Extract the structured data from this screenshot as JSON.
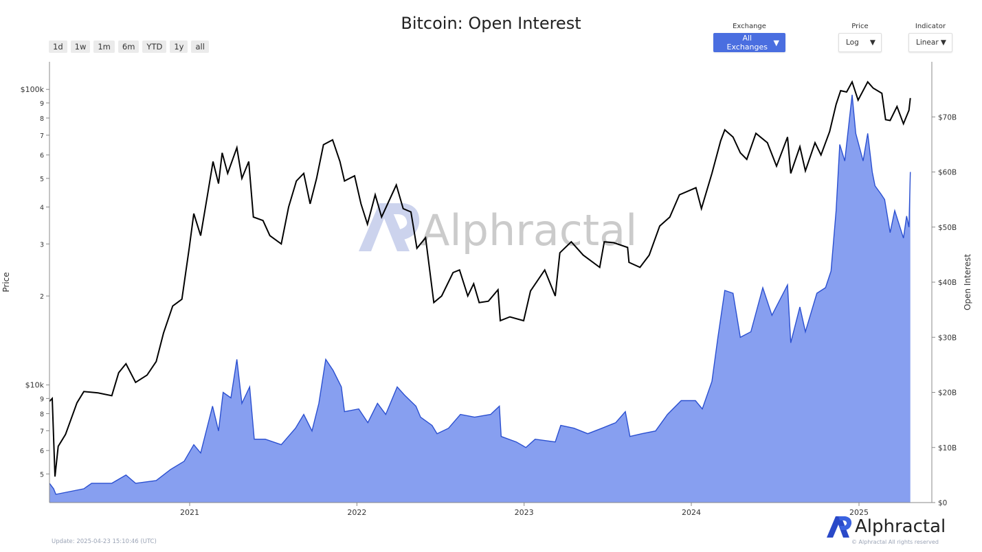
{
  "title": "Bitcoin: Open Interest",
  "range_buttons": [
    "1d",
    "1w",
    "1m",
    "6m",
    "YTD",
    "1y",
    "all"
  ],
  "controls": {
    "exchange": {
      "label": "Exchange",
      "value": "All Exchanges"
    },
    "price": {
      "label": "Price",
      "value": "Log"
    },
    "indicator": {
      "label": "Indicator",
      "value": "Linear"
    }
  },
  "footer": {
    "update": "Update: 2025-04-23 15:10:46 (UTC)",
    "copyright": "© Alphractal All rights reserved",
    "logo_text": "Alphractal",
    "watermark": "Alphractal"
  },
  "colors": {
    "price_line": "#000000",
    "oi_line": "#2a4fd0",
    "oi_fill": "#879ff0",
    "exchange_button": "#4a6ee0"
  },
  "chart_data": {
    "type": "line+area",
    "title": "Bitcoin: Open Interest",
    "xlabel": "",
    "x_ticks": [
      "2021",
      "2022",
      "2023",
      "2024",
      "2025"
    ],
    "x_range": [
      "2020-03-01",
      "2025-06-09"
    ],
    "y_left": {
      "label": "Price",
      "scale": "log",
      "range": [
        4000,
        124000
      ],
      "ticks": [
        {
          "v": 5000,
          "t": "5"
        },
        {
          "v": 6000,
          "t": "6"
        },
        {
          "v": 7000,
          "t": "7"
        },
        {
          "v": 8000,
          "t": "8"
        },
        {
          "v": 9000,
          "t": "9"
        },
        {
          "v": 10000,
          "t": "$10k"
        },
        {
          "v": 20000,
          "t": "2"
        },
        {
          "v": 30000,
          "t": "3"
        },
        {
          "v": 40000,
          "t": "4"
        },
        {
          "v": 50000,
          "t": "5"
        },
        {
          "v": 60000,
          "t": "6"
        },
        {
          "v": 70000,
          "t": "7"
        },
        {
          "v": 80000,
          "t": "8"
        },
        {
          "v": 90000,
          "t": "9"
        },
        {
          "v": 100000,
          "t": "$100k"
        }
      ]
    },
    "y_right": {
      "label": "Open Interest",
      "scale": "linear",
      "range": [
        0,
        80
      ],
      "ticks": [
        {
          "v": 0,
          "t": "$0"
        },
        {
          "v": 10,
          "t": "$10B"
        },
        {
          "v": 20,
          "t": "$20B"
        },
        {
          "v": 30,
          "t": "$30B"
        },
        {
          "v": 40,
          "t": "$40B"
        },
        {
          "v": 50,
          "t": "$50B"
        },
        {
          "v": 60,
          "t": "$60B"
        },
        {
          "v": 70,
          "t": "$70B"
        }
      ]
    },
    "series": [
      {
        "type": "line",
        "axis": "left",
        "unit": "USD",
        "points": [
          [
            "2020-03-01",
            8800
          ],
          [
            "2020-03-07",
            9000
          ],
          [
            "2020-03-13",
            4900
          ],
          [
            "2020-03-20",
            6200
          ],
          [
            "2020-04-05",
            6800
          ],
          [
            "2020-04-30",
            8700
          ],
          [
            "2020-05-15",
            9500
          ],
          [
            "2020-06-15",
            9400
          ],
          [
            "2020-07-15",
            9200
          ],
          [
            "2020-07-30",
            11000
          ],
          [
            "2020-08-15",
            11800
          ],
          [
            "2020-09-05",
            10200
          ],
          [
            "2020-09-30",
            10800
          ],
          [
            "2020-10-20",
            12000
          ],
          [
            "2020-11-05",
            15000
          ],
          [
            "2020-11-25",
            18500
          ],
          [
            "2020-12-15",
            19500
          ],
          [
            "2020-12-31",
            29000
          ],
          [
            "2021-01-10",
            38000
          ],
          [
            "2021-01-25",
            32000
          ],
          [
            "2021-02-10",
            45000
          ],
          [
            "2021-02-21",
            57000
          ],
          [
            "2021-03-05",
            48000
          ],
          [
            "2021-03-13",
            61000
          ],
          [
            "2021-03-25",
            52000
          ],
          [
            "2021-04-14",
            63500
          ],
          [
            "2021-04-25",
            50000
          ],
          [
            "2021-05-10",
            57000
          ],
          [
            "2021-05-20",
            37000
          ],
          [
            "2021-06-10",
            36000
          ],
          [
            "2021-06-25",
            32000
          ],
          [
            "2021-07-20",
            30000
          ],
          [
            "2021-08-05",
            40000
          ],
          [
            "2021-08-22",
            49000
          ],
          [
            "2021-09-07",
            52000
          ],
          [
            "2021-09-21",
            41000
          ],
          [
            "2021-10-05",
            50000
          ],
          [
            "2021-10-20",
            65000
          ],
          [
            "2021-11-09",
            67500
          ],
          [
            "2021-11-25",
            57000
          ],
          [
            "2021-12-05",
            49000
          ],
          [
            "2021-12-27",
            51000
          ],
          [
            "2022-01-10",
            41000
          ],
          [
            "2022-01-24",
            35000
          ],
          [
            "2022-02-10",
            44000
          ],
          [
            "2022-02-24",
            37000
          ],
          [
            "2022-03-28",
            47500
          ],
          [
            "2022-04-12",
            39500
          ],
          [
            "2022-04-29",
            38500
          ],
          [
            "2022-05-12",
            29000
          ],
          [
            "2022-05-31",
            31500
          ],
          [
            "2022-06-18",
            19000
          ],
          [
            "2022-07-05",
            20000
          ],
          [
            "2022-07-30",
            24000
          ],
          [
            "2022-08-13",
            24500
          ],
          [
            "2022-08-31",
            20000
          ],
          [
            "2022-09-13",
            22000
          ],
          [
            "2022-09-25",
            19000
          ],
          [
            "2022-10-15",
            19200
          ],
          [
            "2022-11-05",
            21000
          ],
          [
            "2022-11-10",
            16500
          ],
          [
            "2022-12-01",
            17000
          ],
          [
            "2022-12-31",
            16500
          ],
          [
            "2023-01-15",
            20800
          ],
          [
            "2023-02-15",
            24500
          ],
          [
            "2023-03-10",
            20000
          ],
          [
            "2023-03-20",
            28000
          ],
          [
            "2023-04-14",
            30500
          ],
          [
            "2023-05-10",
            27500
          ],
          [
            "2023-06-15",
            25000
          ],
          [
            "2023-06-25",
            30500
          ],
          [
            "2023-07-15",
            30300
          ],
          [
            "2023-08-15",
            29200
          ],
          [
            "2023-08-18",
            26000
          ],
          [
            "2023-09-11",
            25000
          ],
          [
            "2023-10-01",
            27500
          ],
          [
            "2023-10-24",
            34500
          ],
          [
            "2023-11-15",
            37000
          ],
          [
            "2023-12-06",
            44000
          ],
          [
            "2024-01-11",
            46500
          ],
          [
            "2024-01-23",
            39500
          ],
          [
            "2024-02-15",
            52000
          ],
          [
            "2024-03-05",
            67000
          ],
          [
            "2024-03-14",
            73000
          ],
          [
            "2024-04-01",
            69000
          ],
          [
            "2024-04-17",
            61000
          ],
          [
            "2024-05-01",
            58000
          ],
          [
            "2024-05-21",
            71000
          ],
          [
            "2024-06-15",
            66000
          ],
          [
            "2024-07-05",
            55000
          ],
          [
            "2024-07-29",
            69000
          ],
          [
            "2024-08-05",
            52000
          ],
          [
            "2024-08-25",
            64000
          ],
          [
            "2024-09-06",
            53000
          ],
          [
            "2024-09-27",
            66000
          ],
          [
            "2024-10-10",
            60000
          ],
          [
            "2024-10-29",
            72000
          ],
          [
            "2024-11-12",
            89000
          ],
          [
            "2024-11-22",
            99000
          ],
          [
            "2024-12-05",
            98000
          ],
          [
            "2024-12-17",
            106000
          ],
          [
            "2024-12-30",
            92000
          ],
          [
            "2025-01-20",
            106000
          ],
          [
            "2025-02-01",
            101000
          ],
          [
            "2025-02-20",
            97000
          ],
          [
            "2025-02-28",
            79000
          ],
          [
            "2025-03-10",
            78500
          ],
          [
            "2025-03-25",
            87500
          ],
          [
            "2025-04-08",
            76500
          ],
          [
            "2025-04-20",
            85000
          ],
          [
            "2025-04-23",
            93500
          ]
        ]
      },
      {
        "type": "area",
        "axis": "right",
        "unit": "USD billions",
        "points": [
          [
            "2020-03-01",
            3.5
          ],
          [
            "2020-03-10",
            2.5
          ],
          [
            "2020-03-15",
            1.5
          ],
          [
            "2020-05-15",
            2.5
          ],
          [
            "2020-06-01",
            3.5
          ],
          [
            "2020-07-15",
            3.5
          ],
          [
            "2020-08-15",
            5.0
          ],
          [
            "2020-09-05",
            3.5
          ],
          [
            "2020-10-20",
            4.0
          ],
          [
            "2020-11-20",
            6.0
          ],
          [
            "2020-12-20",
            7.5
          ],
          [
            "2021-01-10",
            10.5
          ],
          [
            "2021-01-25",
            9.0
          ],
          [
            "2021-02-20",
            17.5
          ],
          [
            "2021-03-05",
            13.0
          ],
          [
            "2021-03-15",
            20.0
          ],
          [
            "2021-04-01",
            19.0
          ],
          [
            "2021-04-14",
            26.0
          ],
          [
            "2021-04-25",
            18.0
          ],
          [
            "2021-05-12",
            21.0
          ],
          [
            "2021-05-22",
            11.5
          ],
          [
            "2021-06-15",
            11.5
          ],
          [
            "2021-07-20",
            10.5
          ],
          [
            "2021-08-20",
            13.5
          ],
          [
            "2021-09-07",
            16.0
          ],
          [
            "2021-09-25",
            13.0
          ],
          [
            "2021-10-10",
            18.0
          ],
          [
            "2021-10-25",
            26.0
          ],
          [
            "2021-11-10",
            24.0
          ],
          [
            "2021-11-28",
            21.0
          ],
          [
            "2021-12-05",
            16.5
          ],
          [
            "2022-01-05",
            17.0
          ],
          [
            "2022-01-25",
            14.5
          ],
          [
            "2022-02-15",
            18.0
          ],
          [
            "2022-03-05",
            16.0
          ],
          [
            "2022-03-30",
            21.0
          ],
          [
            "2022-04-15",
            19.5
          ],
          [
            "2022-05-10",
            17.5
          ],
          [
            "2022-05-20",
            15.5
          ],
          [
            "2022-06-14",
            14.0
          ],
          [
            "2022-06-25",
            12.5
          ],
          [
            "2022-07-20",
            13.5
          ],
          [
            "2022-08-15",
            16.0
          ],
          [
            "2022-09-15",
            15.5
          ],
          [
            "2022-10-20",
            16.0
          ],
          [
            "2022-11-08",
            17.5
          ],
          [
            "2022-11-12",
            12.0
          ],
          [
            "2022-12-15",
            11.0
          ],
          [
            "2023-01-05",
            10.0
          ],
          [
            "2023-01-25",
            11.5
          ],
          [
            "2023-03-10",
            11.0
          ],
          [
            "2023-03-22",
            14.0
          ],
          [
            "2023-04-20",
            13.5
          ],
          [
            "2023-05-20",
            12.5
          ],
          [
            "2023-06-20",
            13.5
          ],
          [
            "2023-07-20",
            14.5
          ],
          [
            "2023-08-10",
            16.5
          ],
          [
            "2023-08-20",
            12.0
          ],
          [
            "2023-09-15",
            12.5
          ],
          [
            "2023-10-15",
            13.0
          ],
          [
            "2023-11-10",
            16.0
          ],
          [
            "2023-12-10",
            18.5
          ],
          [
            "2024-01-10",
            18.5
          ],
          [
            "2024-01-25",
            17.0
          ],
          [
            "2024-02-15",
            22.0
          ],
          [
            "2024-02-28",
            30.0
          ],
          [
            "2024-03-14",
            38.5
          ],
          [
            "2024-04-01",
            38.0
          ],
          [
            "2024-04-17",
            30.0
          ],
          [
            "2024-05-10",
            31.0
          ],
          [
            "2024-06-05",
            39.0
          ],
          [
            "2024-06-25",
            34.0
          ],
          [
            "2024-07-29",
            39.5
          ],
          [
            "2024-08-05",
            29.0
          ],
          [
            "2024-08-25",
            35.5
          ],
          [
            "2024-09-06",
            31.0
          ],
          [
            "2024-10-01",
            38.0
          ],
          [
            "2024-10-20",
            39.0
          ],
          [
            "2024-11-01",
            42.0
          ],
          [
            "2024-11-12",
            53.0
          ],
          [
            "2024-11-20",
            65.0
          ],
          [
            "2024-12-01",
            62.0
          ],
          [
            "2024-12-17",
            74.0
          ],
          [
            "2024-12-25",
            67.0
          ],
          [
            "2025-01-10",
            62.0
          ],
          [
            "2025-01-20",
            67.0
          ],
          [
            "2025-01-30",
            60.0
          ],
          [
            "2025-02-05",
            57.5
          ],
          [
            "2025-02-18",
            56.0
          ],
          [
            "2025-02-26",
            55.0
          ],
          [
            "2025-03-10",
            49.0
          ],
          [
            "2025-03-20",
            53.0
          ],
          [
            "2025-04-08",
            48.0
          ],
          [
            "2025-04-15",
            52.0
          ],
          [
            "2025-04-20",
            50.0
          ],
          [
            "2025-04-23",
            60.0
          ]
        ]
      }
    ]
  }
}
